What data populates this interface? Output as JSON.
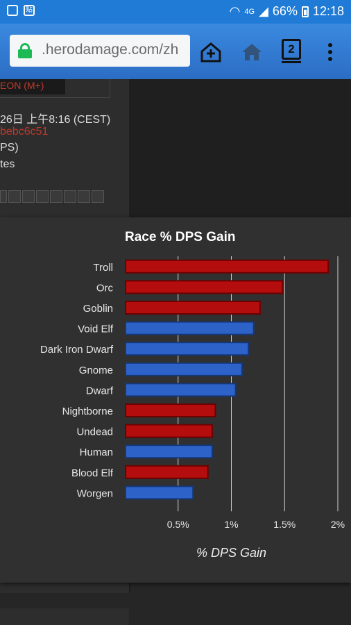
{
  "status_bar": {
    "notif_icons": [
      "image-icon",
      "tieba-icon"
    ],
    "network": "4G",
    "battery": "66%",
    "time": "12:18"
  },
  "browser": {
    "url": ".herodamage.com/zh",
    "tab_count": "2"
  },
  "page": {
    "dungeon_label": "EON (M+)",
    "date_text": "26日 上午8:16 (CEST)",
    "hash_text": "bebc6c51",
    "dps_text": "PS)",
    "minutes_text": "tes"
  },
  "chart_data": {
    "type": "bar",
    "title": "Race % DPS Gain",
    "xlabel": "% DPS Gain",
    "ylabel": "",
    "categories": [
      "Troll",
      "Orc",
      "Goblin",
      "Void Elf",
      "Dark Iron Dwarf",
      "Gnome",
      "Dwarf",
      "Nightborne",
      "Undead",
      "Human",
      "Blood Elf",
      "Worgen"
    ],
    "values": [
      1.91,
      1.48,
      1.27,
      1.21,
      1.16,
      1.1,
      1.04,
      0.85,
      0.82,
      0.82,
      0.78,
      0.64
    ],
    "factions": [
      "horde",
      "horde",
      "horde",
      "alliance",
      "alliance",
      "alliance",
      "alliance",
      "horde",
      "horde",
      "alliance",
      "horde",
      "alliance"
    ],
    "xticks": [
      "0.5%",
      "1%",
      "1.5%",
      "2%"
    ],
    "xtick_values": [
      0.5,
      1.0,
      1.5,
      2.0
    ],
    "xlim": [
      0,
      2.0
    ],
    "grid": true,
    "colors": {
      "horde": "#b30d0d",
      "alliance": "#2d63c8",
      "horde_border": "#6e0000",
      "alliance_border": "#15387a"
    }
  }
}
